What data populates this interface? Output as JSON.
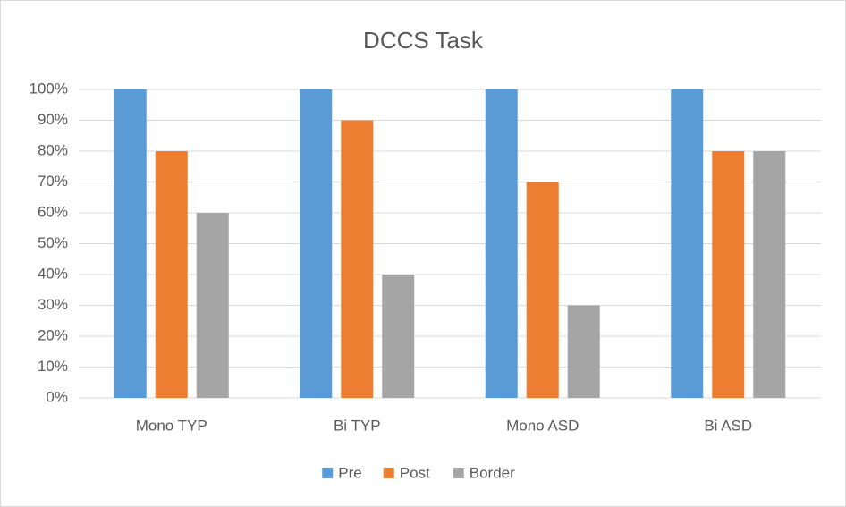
{
  "chart_data": {
    "type": "bar",
    "title": "DCCS Task",
    "categories": [
      "Mono TYP",
      "Bi TYP",
      "Mono ASD",
      "Bi ASD"
    ],
    "series": [
      {
        "name": "Pre",
        "color": "#5b9bd5",
        "values": [
          100,
          100,
          100,
          100
        ]
      },
      {
        "name": "Post",
        "color": "#ed7d31",
        "values": [
          80,
          90,
          70,
          80
        ]
      },
      {
        "name": "Border",
        "color": "#a5a5a5",
        "values": [
          60,
          40,
          30,
          80
        ]
      }
    ],
    "ylim": [
      0,
      100
    ],
    "yticks": [
      {
        "value": 0,
        "label": "0%"
      },
      {
        "value": 10,
        "label": "10%"
      },
      {
        "value": 20,
        "label": "20%"
      },
      {
        "value": 30,
        "label": "30%"
      },
      {
        "value": 40,
        "label": "40%"
      },
      {
        "value": 50,
        "label": "50%"
      },
      {
        "value": 60,
        "label": "60%"
      },
      {
        "value": 70,
        "label": "70%"
      },
      {
        "value": 80,
        "label": "80%"
      },
      {
        "value": 90,
        "label": "90%"
      },
      {
        "value": 100,
        "label": "100%"
      }
    ],
    "grid": true,
    "legend": "bottom"
  }
}
